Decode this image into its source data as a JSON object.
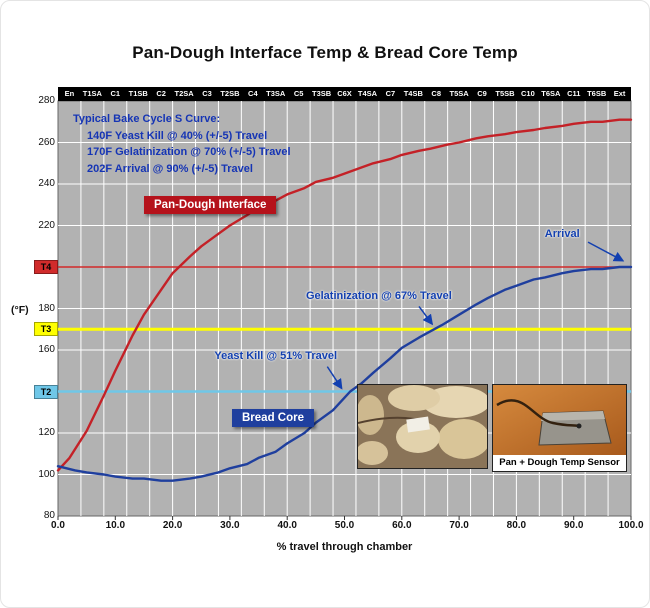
{
  "title": "Pan-Dough Interface Temp & Bread Core Temp",
  "axes": {
    "y_unit": "(°F)",
    "x_title": "% travel through chamber"
  },
  "info_box": {
    "lines": [
      "Typical Bake Cycle S Curve:",
      "140F Yeast Kill @ 40% (+/-5) Travel",
      "170F Gelatinization @ 70% (+/-5) Travel",
      "202F Arrival @ 90% (+/-5) Travel"
    ]
  },
  "series_labels": {
    "pan_dough": "Pan-Dough Interface",
    "bread_core": "Bread Core"
  },
  "inset_caption": "Pan + Dough Temp Sensor",
  "colors": {
    "pan_dough": "#c42127",
    "bread_core": "#1f3f9e",
    "annotation_text": "#1340b0",
    "plot_bg": "#b2b2b2",
    "zone_bar_bg": "#000000",
    "ref_t4": "#d12b2b",
    "ref_t3": "#ffff00",
    "ref_t2": "#6fc7e8"
  },
  "chart_data": {
    "type": "line",
    "title": "Pan-Dough Interface Temp & Bread Core Temp",
    "xlabel": "% travel through chamber",
    "ylabel": "(°F)",
    "xlim": [
      0,
      100
    ],
    "ylim": [
      80,
      280
    ],
    "grid": true,
    "x_ticks": [
      0,
      10,
      20,
      30,
      40,
      50,
      60,
      70,
      80,
      90,
      100
    ],
    "x_tick_labels": [
      "0.0",
      "10.0",
      "20.0",
      "30.0",
      "40.0",
      "50.0",
      "60.0",
      "70.0",
      "80.0",
      "90.0",
      "100.0"
    ],
    "y_ticks": [
      80,
      100,
      120,
      140,
      160,
      180,
      200,
      220,
      240,
      260,
      280
    ],
    "zone_labels": [
      "En",
      "T1SA",
      "C1",
      "T1SB",
      "C2",
      "T2SA",
      "C3",
      "T2SB",
      "C4",
      "T3SA",
      "C5",
      "T3SB",
      "C6X",
      "T4SA",
      "C7",
      "T4SB",
      "C8",
      "T5SA",
      "C9",
      "T5SB",
      "C10",
      "T6SA",
      "C11",
      "T6SB",
      "Ext"
    ],
    "series": [
      {
        "name": "Pan-Dough Interface",
        "color": "#c42127",
        "points": [
          [
            0,
            102
          ],
          [
            2,
            108
          ],
          [
            5,
            121
          ],
          [
            8,
            138
          ],
          [
            10,
            150
          ],
          [
            13,
            167
          ],
          [
            15,
            177
          ],
          [
            18,
            189
          ],
          [
            20,
            197
          ],
          [
            23,
            205
          ],
          [
            25,
            210
          ],
          [
            28,
            216
          ],
          [
            30,
            220
          ],
          [
            33,
            225
          ],
          [
            35,
            229
          ],
          [
            38,
            232
          ],
          [
            40,
            235
          ],
          [
            43,
            238
          ],
          [
            45,
            241
          ],
          [
            48,
            243
          ],
          [
            50,
            245
          ],
          [
            53,
            248
          ],
          [
            55,
            250
          ],
          [
            58,
            252
          ],
          [
            60,
            254
          ],
          [
            63,
            256
          ],
          [
            65,
            257
          ],
          [
            68,
            259
          ],
          [
            70,
            260
          ],
          [
            73,
            262
          ],
          [
            75,
            263
          ],
          [
            78,
            264
          ],
          [
            80,
            265
          ],
          [
            83,
            266
          ],
          [
            85,
            267
          ],
          [
            88,
            268
          ],
          [
            90,
            269
          ],
          [
            93,
            270
          ],
          [
            95,
            270
          ],
          [
            98,
            271
          ],
          [
            100,
            271
          ]
        ]
      },
      {
        "name": "Bread Core",
        "color": "#1f3f9e",
        "points": [
          [
            0,
            104
          ],
          [
            3,
            102
          ],
          [
            5,
            101
          ],
          [
            8,
            100
          ],
          [
            10,
            99
          ],
          [
            13,
            98
          ],
          [
            15,
            98
          ],
          [
            18,
            97
          ],
          [
            20,
            97
          ],
          [
            23,
            98
          ],
          [
            25,
            99
          ],
          [
            28,
            101
          ],
          [
            30,
            103
          ],
          [
            33,
            105
          ],
          [
            35,
            108
          ],
          [
            38,
            111
          ],
          [
            40,
            115
          ],
          [
            43,
            120
          ],
          [
            45,
            125
          ],
          [
            48,
            131
          ],
          [
            50,
            137
          ],
          [
            51,
            140
          ],
          [
            53,
            144
          ],
          [
            55,
            149
          ],
          [
            58,
            156
          ],
          [
            60,
            161
          ],
          [
            63,
            166
          ],
          [
            65,
            169
          ],
          [
            67,
            172
          ],
          [
            70,
            177
          ],
          [
            73,
            182
          ],
          [
            75,
            185
          ],
          [
            78,
            189
          ],
          [
            80,
            191
          ],
          [
            83,
            194
          ],
          [
            85,
            195
          ],
          [
            88,
            197
          ],
          [
            90,
            198
          ],
          [
            93,
            199
          ],
          [
            95,
            199
          ],
          [
            98,
            200
          ],
          [
            100,
            200
          ]
        ]
      }
    ],
    "reference_lines": [
      {
        "label": "T4",
        "temp": 200,
        "color": "#d12b2b",
        "width": 1.6
      },
      {
        "label": "T3",
        "temp": 170,
        "color": "#ffff00",
        "width": 3
      },
      {
        "label": "T2",
        "temp": 140,
        "color": "#6fc7e8",
        "width": 2.4
      }
    ],
    "annotations": [
      {
        "label": "Arrival",
        "text_pct": 88,
        "text_temp": 216,
        "from_pct": 92.5,
        "from_temp": 212,
        "to_pct": 98.6,
        "to_temp": 203
      },
      {
        "label": "Gelatinization @ 67% Travel",
        "text_pct": 56,
        "text_temp": 186,
        "from_pct": 63,
        "from_temp": 181,
        "to_pct": 65.3,
        "to_temp": 172.5
      },
      {
        "label": "Yeast Kill @ 51% Travel",
        "text_pct": 38,
        "text_temp": 157,
        "from_pct": 47,
        "from_temp": 152,
        "to_pct": 49.5,
        "to_temp": 141.5
      }
    ]
  }
}
